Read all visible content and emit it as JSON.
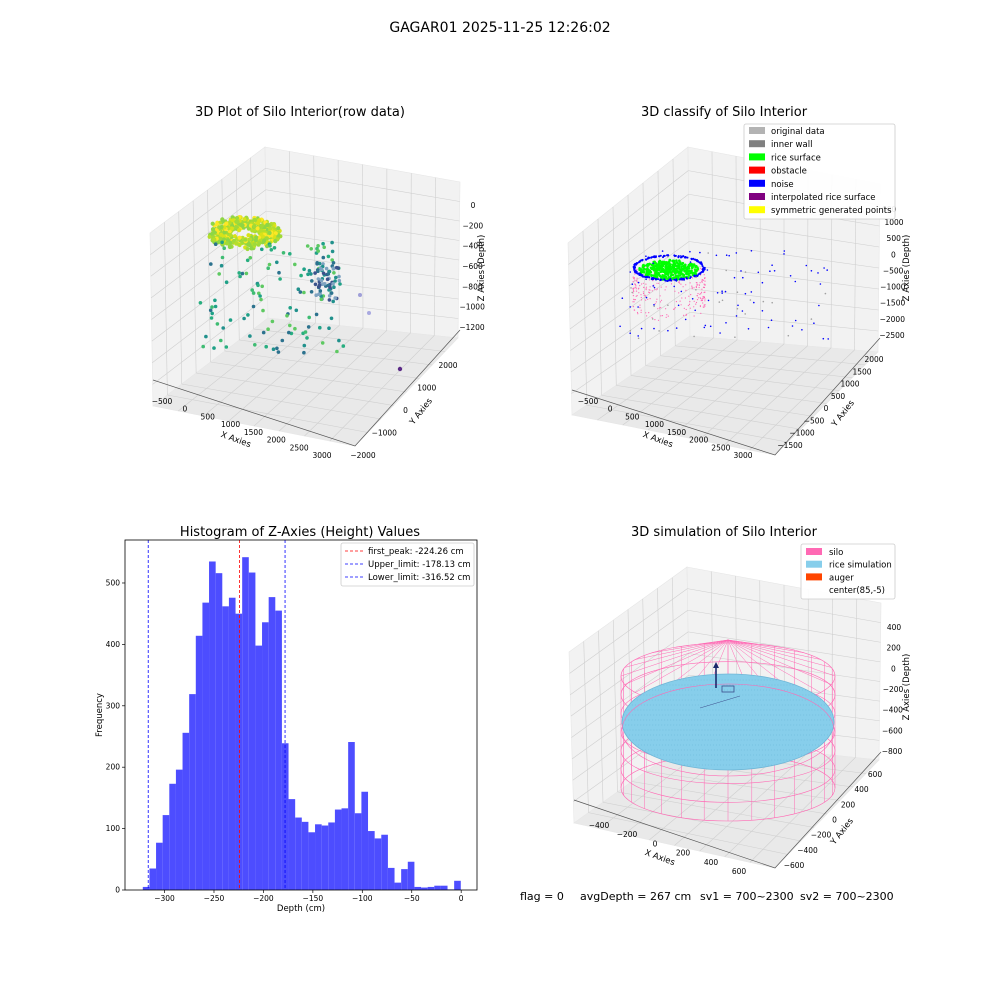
{
  "figure": {
    "title": "GAGAR01 2025-11-25 12:26:02",
    "footer": {
      "flag": "flag = 0",
      "avg_depth": "avgDepth = 267 cm",
      "sv1": "sv1 = 700~2300",
      "sv2": "sv2 = 700~2300"
    }
  },
  "chart_data": [
    {
      "type": "scatter",
      "title": "3D Plot of Silo Interior(row data)",
      "xlabel": "X Axies",
      "ylabel": "Y Axies",
      "zlabel": "Z Axies (Depth)",
      "x_ticks": [
        "−500",
        "0",
        "500",
        "1000",
        "1500",
        "2000",
        "2500",
        "3000"
      ],
      "y_ticks": [
        "−2000",
        "−1000",
        "0",
        "1000",
        "2000"
      ],
      "z_ticks": [
        "0",
        "−200",
        "−400",
        "−600",
        "−800",
        "−1000",
        "−1200"
      ],
      "colormap": "viridis"
    },
    {
      "type": "scatter",
      "title": "3D classify of Silo Interior",
      "xlabel": "X Axies",
      "ylabel": "Y Axies",
      "zlabel": "Z Axies (Depth)",
      "x_ticks": [
        "−500",
        "0",
        "500",
        "1000",
        "1500",
        "2000",
        "2500",
        "3000"
      ],
      "y_ticks": [
        "−1500",
        "−1000",
        "−500",
        "0",
        "500",
        "1000",
        "1500",
        "2000"
      ],
      "z_ticks": [
        "1000",
        "500",
        "0",
        "−500",
        "−1000",
        "−1500",
        "−2000",
        "−2500"
      ],
      "z_tick_partial": "000",
      "legend_position": "upper-right",
      "legend": [
        {
          "label": "original data",
          "color": "#b3b3b3"
        },
        {
          "label": "inner wall",
          "color": "#808080"
        },
        {
          "label": "rice surface",
          "color": "#00ff00"
        },
        {
          "label": "obstacle",
          "color": "#ff0000"
        },
        {
          "label": "noise",
          "color": "#0000ff"
        },
        {
          "label": "interpolated rice surface",
          "color": "#800080"
        },
        {
          "label": "symmetric generated points",
          "color": "#ffff00"
        }
      ]
    },
    {
      "type": "bar",
      "title": "Histogram of Z-Axies (Height) Values",
      "xlabel": "Depth (cm)",
      "ylabel": "Frequency",
      "bar_color": "#4d4dff",
      "xlim": [
        -340,
        16
      ],
      "ylim": [
        0,
        570
      ],
      "bin_start": -322,
      "bin_width": 6.7,
      "values": [
        5,
        35,
        77,
        122,
        173,
        196,
        256,
        319,
        414,
        468,
        535,
        516,
        462,
        476,
        450,
        542,
        517,
        398,
        436,
        477,
        455,
        239,
        148,
        118,
        111,
        94,
        107,
        105,
        110,
        131,
        133,
        241,
        125,
        160,
        96,
        84,
        90,
        36,
        12,
        34,
        46,
        5,
        4,
        5,
        7,
        7,
        1,
        15
      ],
      "x_ticks": [
        -300,
        -250,
        -200,
        -150,
        -100,
        -50,
        0
      ],
      "x_tick_labels": [
        "−300",
        "−250",
        "−200",
        "−150",
        "−100",
        "−50",
        "0"
      ],
      "y_ticks": [
        0,
        100,
        200,
        300,
        400,
        500
      ],
      "y_tick_labels": [
        "0",
        "100",
        "200",
        "300",
        "400",
        "500"
      ],
      "legend_position": "upper-right",
      "lines": [
        {
          "label": "first_peak: -224.26 cm",
          "x": -224.26,
          "color": "#ff0000"
        },
        {
          "label": "Upper_limit: -178.13 cm",
          "x": -178.13,
          "color": "#0000ff"
        },
        {
          "label": "Lower_limit: -316.52 cm",
          "x": -316.52,
          "color": "#0000ff"
        }
      ]
    },
    {
      "type": "scatter",
      "title": "3D simulation of Silo Interior",
      "xlabel": "X Axies",
      "ylabel": "Y Axies",
      "zlabel": "Z Axies (Depth)",
      "x_ticks": [
        "−400",
        "−200",
        "0",
        "200",
        "400",
        "600"
      ],
      "y_ticks": [
        "−600",
        "−400",
        "−200",
        "0",
        "200",
        "400",
        "600"
      ],
      "z_ticks": [
        "400",
        "200",
        "0",
        "−200",
        "−400",
        "−600",
        "−800"
      ],
      "legend_position": "upper-right",
      "legend": [
        {
          "label": "silo",
          "color": "#ff69b4"
        },
        {
          "label": "rice simulation",
          "color": "#87ceeb"
        },
        {
          "label": "auger",
          "color": "#ff4500"
        },
        {
          "label": "center(85,-5)",
          "color": "none"
        }
      ]
    }
  ]
}
